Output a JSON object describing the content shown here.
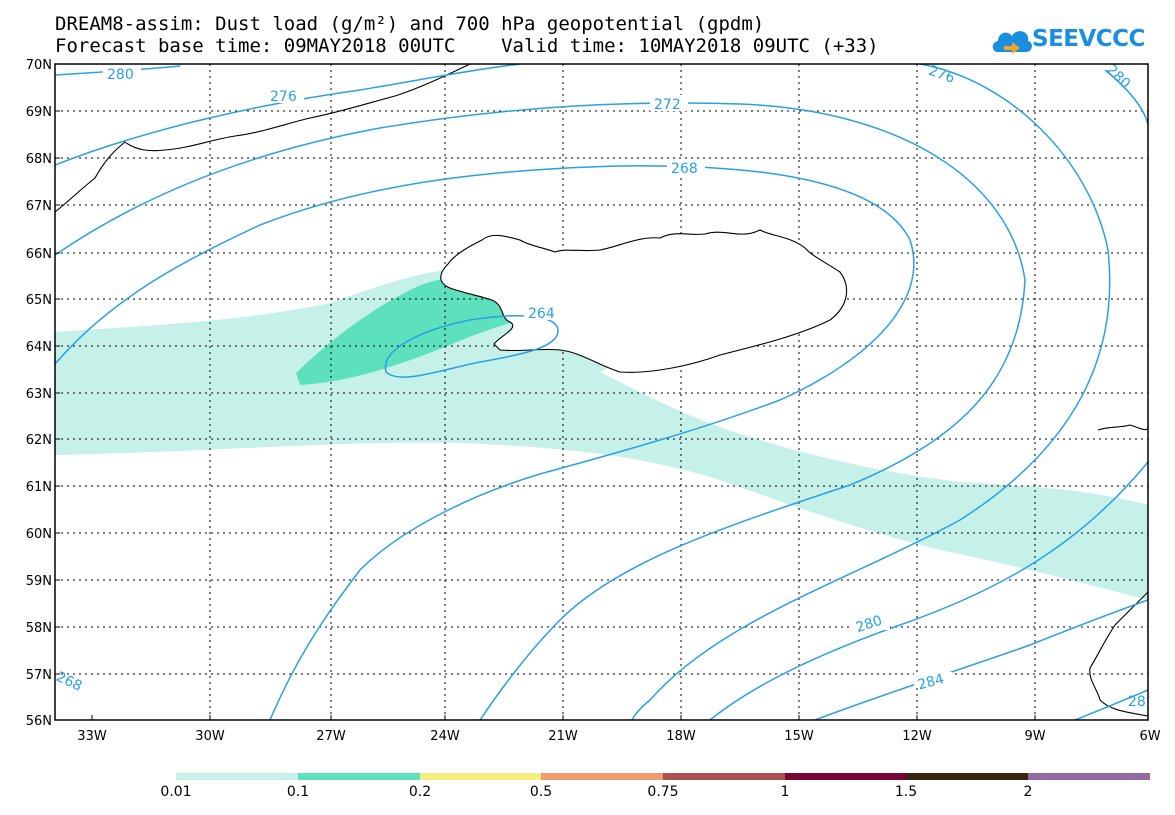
{
  "title": {
    "line1": "DREAM8-assim: Dust load (g/m²) and 700 hPa geopotential (gpdm)",
    "line2": "Forecast base time: 09MAY2018 00UTC    Valid time: 10MAY2018 09UTC (+33)"
  },
  "logo": {
    "text": "SEEVCCC",
    "color": "#1a8fe0"
  },
  "axes": {
    "lat_labels": [
      "70N",
      "69N",
      "68N",
      "67N",
      "66N",
      "65N",
      "64N",
      "63N",
      "62N",
      "61N",
      "60N",
      "59N",
      "58N",
      "57N",
      "56N"
    ],
    "lon_labels": [
      "33W",
      "30W",
      "27W",
      "24W",
      "21W",
      "18W",
      "15W",
      "12W",
      "9W",
      "6W"
    ]
  },
  "contour_labels": [
    "280",
    "276",
    "272",
    "268",
    "264",
    "276",
    "280",
    "280",
    "284",
    "268",
    "28"
  ],
  "colorbar": {
    "colors": [
      "#c5f1e9",
      "#5de1bd",
      "#f7ee7e",
      "#ee9b6e",
      "#ab5152",
      "#7a0635",
      "#3c2510",
      "#936aa2"
    ],
    "labels": [
      "0.01",
      "0.1",
      "0.2",
      "0.5",
      "0.75",
      "1",
      "1.5",
      "2"
    ]
  }
}
